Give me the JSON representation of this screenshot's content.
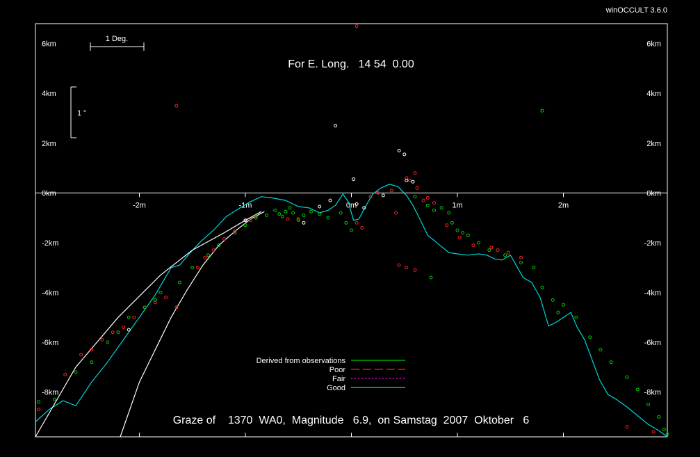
{
  "app": {
    "version_label": "winOCCULT 3.6.0"
  },
  "colors": {
    "background": "#000000",
    "axes": "#ffffff",
    "derived": "#00cc00",
    "poor": "#ff2020",
    "fair": "#ff00ff",
    "good": "#00d8d8",
    "limb_curve": "#ffffff"
  },
  "chart_data": {
    "type": "scatter",
    "header": "For E. Long.   14 54  0.00",
    "title": "Graze of    1370  WA0,  Magnitude   6.9,  on Samstag  2007  Oktober   6",
    "xlim": [
      -2.98,
      2.98
    ],
    "ylim": [
      -9.8,
      6.8
    ],
    "x_ticks": [
      {
        "v": -2,
        "label": "-2m"
      },
      {
        "v": -1,
        "label": "-1m"
      },
      {
        "v": 0,
        "label": "0m"
      },
      {
        "v": 1,
        "label": "1m"
      },
      {
        "v": 2,
        "label": "2m"
      }
    ],
    "y_ticks": [
      {
        "v": 6,
        "label": "6km"
      },
      {
        "v": 4,
        "label": "4km"
      },
      {
        "v": 2,
        "label": "2km"
      },
      {
        "v": 0,
        "label": "0km"
      },
      {
        "v": -2,
        "label": "-2km"
      },
      {
        "v": -4,
        "label": "-4km"
      },
      {
        "v": -6,
        "label": "-6km"
      },
      {
        "v": -8,
        "label": "-8km"
      }
    ],
    "scale_bars": {
      "degree_label": "1 Deg.",
      "arcsec_label": "1 \""
    },
    "legend": {
      "placement": "bottom-center",
      "items": [
        {
          "name": "Derived from observations",
          "color": "#00cc00",
          "dash": "solid"
        },
        {
          "name": "Poor",
          "color": "#ff2020",
          "dash": "long-dash"
        },
        {
          "name": "Fair",
          "color": "#ff00ff",
          "dash": "dot"
        },
        {
          "name": "Good",
          "color": "#00d8d8",
          "dash": "solid"
        }
      ]
    },
    "series": [
      {
        "name": "Good",
        "type": "line",
        "color": "#00d8d8",
        "x": [
          -2.98,
          -2.85,
          -2.72,
          -2.6,
          -2.45,
          -2.3,
          -2.15,
          -2.0,
          -1.85,
          -1.7,
          -1.62,
          -1.52,
          -1.42,
          -1.3,
          -1.18,
          -1.05,
          -0.95,
          -0.85,
          -0.75,
          -0.62,
          -0.5,
          -0.4,
          -0.3,
          -0.22,
          -0.15,
          -0.08,
          -0.03,
          0.02,
          0.07,
          0.12,
          0.2,
          0.28,
          0.36,
          0.44,
          0.52,
          0.58,
          0.64,
          0.72,
          0.82,
          0.92,
          1.0,
          1.1,
          1.2,
          1.28,
          1.35,
          1.42,
          1.5,
          1.56,
          1.62,
          1.7,
          1.78,
          1.86,
          1.93,
          2.0,
          2.07,
          2.13,
          2.2,
          2.27,
          2.34,
          2.42,
          2.5,
          2.6,
          2.7,
          2.8,
          2.9,
          2.98
        ],
        "y": [
          -9.2,
          -8.7,
          -8.35,
          -8.55,
          -7.6,
          -6.8,
          -5.9,
          -5.0,
          -4.1,
          -3.0,
          -2.9,
          -2.4,
          -1.95,
          -1.5,
          -0.95,
          -0.6,
          -0.35,
          -0.15,
          -0.2,
          -0.3,
          -0.55,
          -0.6,
          -0.8,
          -0.7,
          -0.5,
          -0.05,
          -0.35,
          -1.1,
          -1.05,
          -0.65,
          -0.05,
          0.2,
          0.35,
          0.25,
          -0.1,
          -0.5,
          -1.0,
          -1.7,
          -2.05,
          -2.4,
          -2.45,
          -2.5,
          -2.45,
          -2.5,
          -2.65,
          -2.7,
          -2.5,
          -2.95,
          -3.4,
          -3.6,
          -4.2,
          -5.35,
          -5.2,
          -5.0,
          -4.8,
          -5.4,
          -5.9,
          -6.7,
          -7.5,
          -8.1,
          -8.3,
          -8.6,
          -8.95,
          -9.3,
          -9.55,
          -9.8
        ]
      },
      {
        "name": "",
        "type": "line",
        "color": "#ffffff",
        "x": [
          -2.98,
          -2.6,
          -2.2,
          -1.8,
          -1.5,
          -1.2,
          -1.0,
          -0.85
        ],
        "y": [
          -9.8,
          -7.0,
          -5.0,
          -3.3,
          -2.3,
          -1.6,
          -1.1,
          -0.75
        ]
      },
      {
        "name": "",
        "type": "line",
        "color": "#ffffff",
        "x": [
          -2.18,
          -2.0,
          -1.85,
          -1.7,
          -1.55,
          -1.4,
          -1.25,
          -1.1,
          -0.95,
          -0.82
        ],
        "y": [
          -9.8,
          -7.6,
          -6.3,
          -5.0,
          -3.9,
          -2.9,
          -2.1,
          -1.55,
          -1.05,
          -0.75
        ]
      },
      {
        "name": "Poor",
        "type": "scatter",
        "color": "#ff2020",
        "x": [
          0.05,
          -1.65,
          -2.95,
          -2.7,
          -2.55,
          -2.45,
          -2.35,
          -2.25,
          -2.15,
          -2.05,
          -1.95,
          -1.85,
          -1.75,
          -1.65,
          -1.45,
          -1.38,
          -1.3,
          -1.2,
          -1.1,
          -0.95,
          -0.9,
          -0.6,
          -0.5,
          0.05,
          0.1,
          0.18,
          0.25,
          0.38,
          0.42,
          0.52,
          0.55,
          0.6,
          0.62,
          0.68,
          0.72,
          0.78,
          0.9,
          1.02,
          1.15,
          1.32,
          1.38,
          1.48,
          1.6,
          2.6,
          0.45,
          0.52,
          0.6,
          2.85
        ],
        "y": [
          6.7,
          3.5,
          -8.7,
          -7.3,
          -6.5,
          -6.3,
          -5.9,
          -5.6,
          -5.4,
          -5.0,
          -4.6,
          -4.4,
          -4.2,
          -4.6,
          -3.0,
          -2.6,
          -2.3,
          -1.85,
          -1.55,
          -1.1,
          -0.95,
          -1.05,
          -1.1,
          -1.2,
          -1.4,
          -0.15,
          0.0,
          0.1,
          -0.8,
          0.6,
          0.5,
          0.8,
          0.2,
          -0.3,
          -0.2,
          -0.4,
          -1.3,
          -1.8,
          -2.1,
          -2.2,
          -2.3,
          -2.4,
          -2.6,
          -9.4,
          -2.9,
          -3.0,
          -3.1,
          -9.6
        ]
      },
      {
        "name": "Derived from observations",
        "type": "scatter",
        "color": "#00cc00",
        "x": [
          1.8,
          -2.95,
          -2.8,
          -2.6,
          -2.45,
          -2.3,
          -2.2,
          -2.1,
          -1.95,
          -1.85,
          -1.8,
          -1.62,
          -1.5,
          -1.35,
          -1.25,
          -1.1,
          -1.0,
          -0.9,
          -0.8,
          -0.72,
          -0.68,
          -0.65,
          -0.62,
          -0.58,
          -0.55,
          -0.5,
          -0.45,
          -0.38,
          -0.3,
          -0.22,
          -0.1,
          -0.05,
          0.0,
          0.6,
          0.72,
          0.78,
          0.85,
          0.92,
          0.95,
          1.0,
          1.05,
          1.1,
          1.2,
          1.3,
          1.45,
          1.6,
          1.72,
          1.8,
          1.9,
          1.95,
          2.0,
          2.12,
          2.25,
          2.35,
          2.45,
          2.6,
          2.7,
          2.8,
          2.9,
          2.95,
          2.98,
          0.75
        ],
        "y": [
          3.3,
          -8.4,
          -8.3,
          -7.2,
          -6.8,
          -6.0,
          -5.6,
          -5.0,
          -4.6,
          -4.3,
          -4.0,
          -3.6,
          -3.0,
          -2.5,
          -2.1,
          -1.6,
          -1.3,
          -1.0,
          -0.9,
          -0.7,
          -0.85,
          -0.95,
          -0.75,
          -0.6,
          -0.8,
          -1.05,
          -0.9,
          -0.75,
          -0.85,
          -1.0,
          -0.8,
          -1.2,
          -1.5,
          -0.15,
          -0.5,
          -0.7,
          -0.6,
          -0.8,
          -1.2,
          -1.5,
          -1.6,
          -1.7,
          -2.0,
          -2.3,
          -2.5,
          -2.8,
          -3.0,
          -3.8,
          -4.3,
          -4.8,
          -4.5,
          -5.0,
          -5.8,
          -6.3,
          -6.8,
          -7.4,
          -7.9,
          -8.5,
          -9.0,
          -9.5,
          -9.7,
          -3.4
        ]
      },
      {
        "name": "",
        "type": "scatter",
        "color": "#ffffff",
        "x": [
          -0.15,
          0.02,
          0.05,
          0.12,
          0.3,
          0.45,
          0.5,
          0.52,
          0.58,
          -2.1,
          -1.0,
          -0.45,
          -0.3,
          -0.2
        ],
        "y": [
          2.7,
          0.55,
          -0.45,
          -0.6,
          -0.1,
          1.7,
          1.55,
          0.5,
          0.45,
          -5.5,
          -1.1,
          -1.2,
          -0.55,
          -0.3
        ]
      }
    ]
  }
}
